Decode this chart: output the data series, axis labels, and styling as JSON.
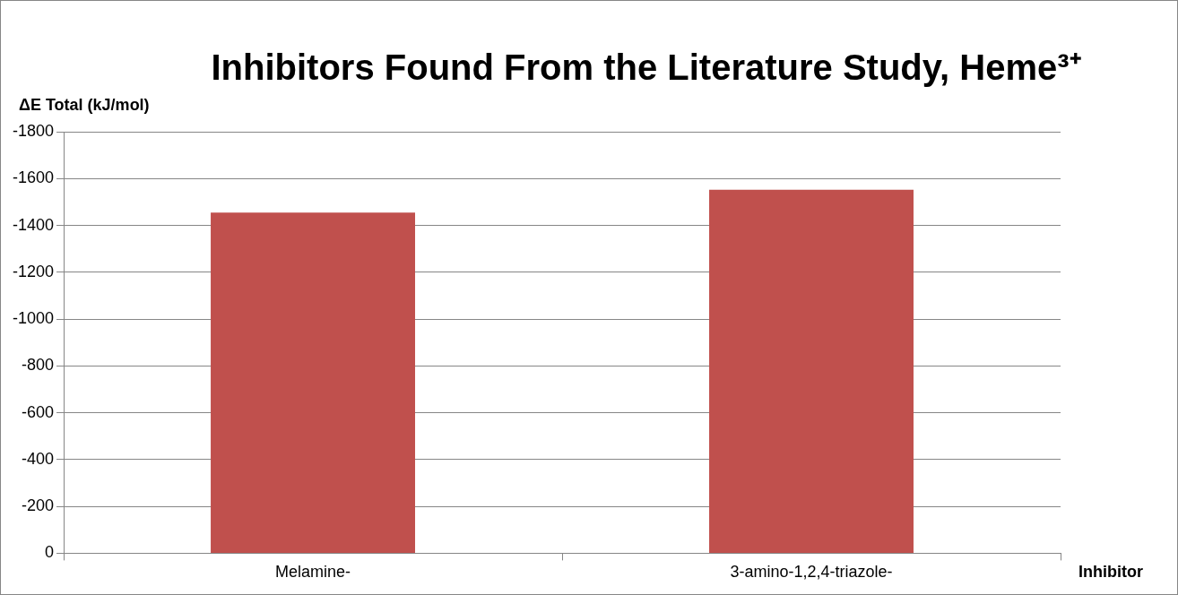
{
  "chart_data": {
    "type": "bar",
    "title": "Inhibitors Found From the Literature Study, Heme³⁺",
    "xlabel": "Inhibitor",
    "ylabel": "ΔE Total (kJ/mol)",
    "categories": [
      "Melamine-",
      "3-amino-1,2,4-triazole-"
    ],
    "values": [
      -1455,
      -1552
    ],
    "color": "#c0504d",
    "ylim": [
      0,
      -1800
    ],
    "yticks": [
      0,
      -200,
      -400,
      -600,
      -800,
      -1000,
      -1200,
      -1400,
      -1600,
      -1800
    ],
    "grid": "y",
    "legend": false
  }
}
